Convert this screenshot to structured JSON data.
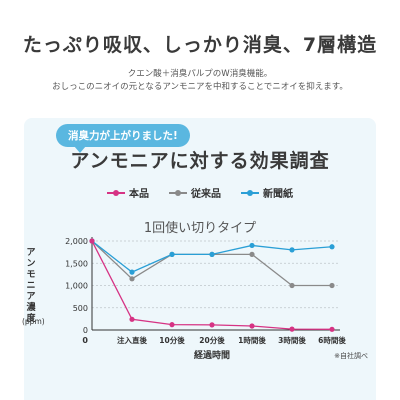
{
  "header": {
    "title": "たっぷり吸収、しっかり消臭、7層構造",
    "line1": "クエン酸＋消臭パルプのW消臭機能。",
    "line2": "おしっこのニオイの元となるアンモニアを中和することでニオイを抑えます。"
  },
  "panel": {
    "bubble": "消臭力が上がりました!",
    "title": "アンモニアに対する効果調査",
    "ylabel": "アンモニア濃度",
    "yunit": "(ppm)",
    "note": "※自社調べ"
  },
  "chart_data": {
    "type": "line",
    "title": "1回使い切りタイプ",
    "xlabel": "経過時間",
    "ylabel": "アンモニア濃度 (ppm)",
    "ylim": [
      0,
      2000
    ],
    "yticks": [
      "0",
      "500",
      "1,000",
      "1,500",
      "2,000"
    ],
    "yticks_values": [
      0,
      500,
      1000,
      1500,
      2000
    ],
    "categories": [
      "0",
      "注入直後",
      "10分後",
      "20分後",
      "1時間後",
      "3時間後",
      "6時間後"
    ],
    "grid": true,
    "legend_position": "top",
    "series": [
      {
        "name": "本品",
        "color": "#d63384",
        "values": [
          2000,
          240,
          120,
          115,
          90,
          20,
          15
        ]
      },
      {
        "name": "従来品",
        "color": "#8a8a8a",
        "values": [
          2000,
          1150,
          1700,
          1700,
          1700,
          1000,
          1000
        ]
      },
      {
        "name": "新聞紙",
        "color": "#2a9fd6",
        "values": [
          2000,
          1300,
          1700,
          1700,
          1900,
          1800,
          1870
        ]
      }
    ]
  }
}
